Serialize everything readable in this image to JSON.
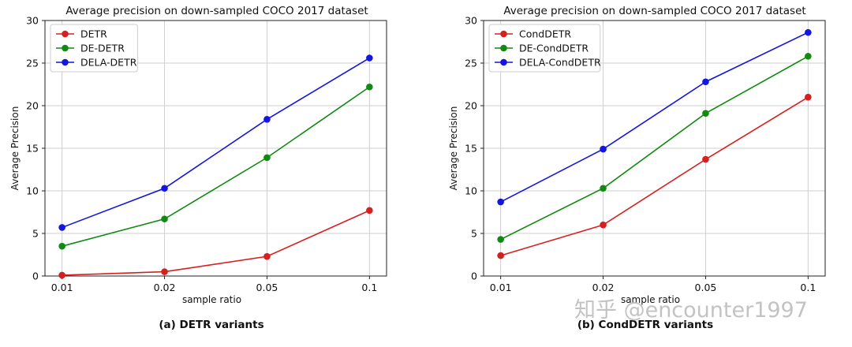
{
  "chart_data": [
    {
      "type": "line",
      "title": "Average precision on down-sampled COCO 2017 dataset",
      "xlabel": "sample ratio",
      "ylabel": "Average Precision",
      "categories": [
        "0.01",
        "0.02",
        "0.05",
        "0.1"
      ],
      "ylim": [
        0,
        30
      ],
      "yticks": [
        "0",
        "5",
        "10",
        "15",
        "20",
        "25",
        "30"
      ],
      "grid": true,
      "legend_position": "top-left",
      "caption": "(a) DETR variants",
      "series": [
        {
          "name": "DETR",
          "color": "#d62020",
          "values": [
            0.1,
            0.5,
            2.3,
            7.7
          ]
        },
        {
          "name": "DE-DETR",
          "color": "#118a11",
          "values": [
            3.5,
            6.7,
            13.9,
            22.2
          ]
        },
        {
          "name": "DELA-DETR",
          "color": "#1515e0",
          "values": [
            5.7,
            10.3,
            18.4,
            25.6
          ]
        }
      ]
    },
    {
      "type": "line",
      "title": "Average precision on down-sampled COCO 2017 dataset",
      "xlabel": "sample ratio",
      "ylabel": "Average Precision",
      "categories": [
        "0.01",
        "0.02",
        "0.05",
        "0.1"
      ],
      "ylim": [
        0,
        30
      ],
      "yticks": [
        "0",
        "5",
        "10",
        "15",
        "20",
        "25",
        "30"
      ],
      "grid": true,
      "legend_position": "top-left",
      "caption": "(b) CondDETR variants",
      "series": [
        {
          "name": "CondDETR",
          "color": "#d62020",
          "values": [
            2.4,
            6.0,
            13.7,
            21.0
          ]
        },
        {
          "name": "DE-CondDETR",
          "color": "#118a11",
          "values": [
            4.3,
            10.3,
            19.1,
            25.8
          ]
        },
        {
          "name": "DELA-CondDETR",
          "color": "#1515e0",
          "values": [
            8.7,
            14.9,
            22.8,
            28.6
          ]
        }
      ]
    }
  ],
  "watermark": "知乎 @encounter1997"
}
